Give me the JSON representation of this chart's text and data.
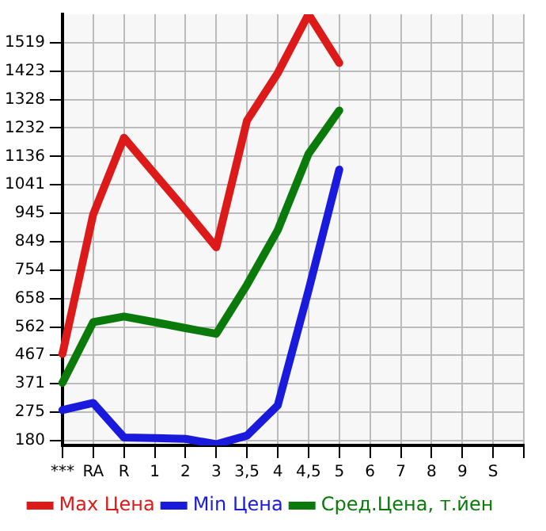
{
  "chart_data": {
    "type": "line",
    "categories": [
      "***",
      "RA",
      "R",
      "1",
      "2",
      "3",
      "3,5",
      "4",
      "4,5",
      "5",
      "6",
      "7",
      "8",
      "9",
      "S",
      null
    ],
    "series": [
      {
        "name": "Max Цена",
        "color": "#dd1a1a",
        "values": [
          471,
          941,
          1199,
          1077,
          956,
          830,
          1257,
          1417,
          1615,
          1451,
          null,
          null,
          null,
          null,
          null,
          null
        ]
      },
      {
        "name": "Min Цена",
        "color": "#1a1add",
        "values": [
          282,
          306,
          190,
          188,
          185,
          167,
          196,
          298,
          685,
          1092,
          null,
          null,
          null,
          null,
          null,
          null
        ]
      },
      {
        "name": "Сред.Цена, т.йен",
        "color": "#0a7a0a",
        "values": [
          374,
          578,
          597,
          578,
          558,
          539,
          704,
          888,
          1145,
          1291,
          null,
          null,
          null,
          null,
          null,
          null
        ]
      }
    ],
    "ylim": [
      163,
      1615
    ],
    "yticks": [
      180,
      275,
      371,
      467,
      562,
      658,
      754,
      849,
      945,
      1041,
      1136,
      1232,
      1328,
      1423,
      1519
    ],
    "grid": true,
    "legend": "bottom",
    "marker": "none",
    "line_style": "solid"
  }
}
